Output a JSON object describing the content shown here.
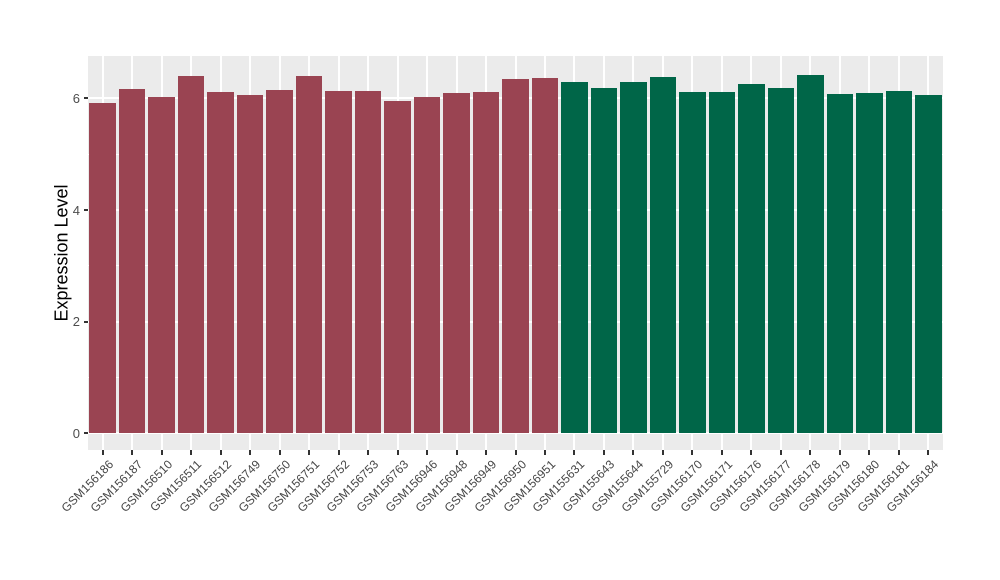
{
  "figure": {
    "background_color": "#FFFFFF",
    "panel_background_color": "#EBEBEB",
    "gridline_color": "#FFFFFF",
    "tick_mark_color": "#333333",
    "axis_text_color": "#4D4D4D",
    "axis_title_color": "#000000",
    "maroon_bar_color": "#9A4452",
    "green_bar_color": "#006648"
  },
  "chart_data": {
    "type": "bar",
    "title": "",
    "xlabel": "",
    "ylabel": "Expression Level",
    "ylim": [
      -0.3,
      6.76
    ],
    "yticks": [
      0,
      2,
      4,
      6
    ],
    "yticks_minor": [
      1,
      3,
      5
    ],
    "grid": true,
    "legend": "none",
    "x_label_rotation_deg": 45,
    "bar_width_fraction": 0.9,
    "categories": [
      "GSM156186",
      "GSM156187",
      "GSM156510",
      "GSM156511",
      "GSM156512",
      "GSM156749",
      "GSM156750",
      "GSM156751",
      "GSM156752",
      "GSM156753",
      "GSM156763",
      "GSM156946",
      "GSM156948",
      "GSM156949",
      "GSM156950",
      "GSM156951",
      "GSM155631",
      "GSM155643",
      "GSM155644",
      "GSM155729",
      "GSM156170",
      "GSM156171",
      "GSM156176",
      "GSM156177",
      "GSM156178",
      "GSM156179",
      "GSM156180",
      "GSM156181",
      "GSM156184"
    ],
    "values": [
      5.91,
      6.17,
      6.02,
      6.41,
      6.12,
      6.06,
      6.15,
      6.4,
      6.13,
      6.13,
      5.95,
      6.02,
      6.1,
      6.11,
      6.34,
      6.36,
      6.3,
      6.19,
      6.29,
      6.39,
      6.11,
      6.11,
      6.26,
      6.18,
      6.42,
      6.08,
      6.1,
      6.14,
      6.06
    ],
    "groups": [
      {
        "name": "group-maroon",
        "color": "#9A4452",
        "start_index": 0,
        "count": 16
      },
      {
        "name": "group-green",
        "color": "#006648",
        "start_index": 16,
        "count": 13
      }
    ]
  }
}
